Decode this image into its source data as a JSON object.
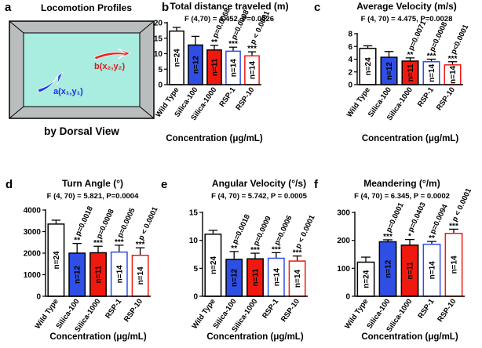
{
  "panel_a": {
    "letter": "a",
    "title": "Locomotion Profiles",
    "point_b": "b(x₂,y₂)",
    "point_a": "a(x₁,y₁)",
    "caption": "by Dorsal View"
  },
  "chart_data": [
    {
      "type": "bar",
      "panel": "b",
      "title": "Total distance traveled (m)",
      "subtitle": "F (4,70) = 4.452, P=0.0026",
      "categories": [
        "Wild Type",
        "Silica-100",
        "Silica-1000",
        "RSP-1",
        "RSP-10"
      ],
      "values": [
        17.3,
        12.8,
        11.2,
        10.8,
        9.3
      ],
      "errors": [
        1.2,
        2.8,
        1.5,
        1.3,
        1.3
      ],
      "colors": [
        "#ffffff",
        "#2f4fe4",
        "#f0190f",
        "#ffffff",
        "#ffffff"
      ],
      "edge_colors": [
        "#000000",
        "#000000",
        "#000000",
        "#2f4fe4",
        "#f0190f"
      ],
      "n_labels": [
        "n=24",
        "n=12",
        "n=11",
        "n=14",
        "n=14"
      ],
      "stars": [
        null,
        null,
        "**",
        "***",
        "***"
      ],
      "p_labels": [
        null,
        null,
        "p=0.0068",
        "p=0.0008",
        "p < 0.0001"
      ],
      "xlabel": "Concentration (μg/mL)",
      "ylim": [
        0,
        20
      ],
      "yticks": [
        0,
        5,
        10,
        15,
        20
      ]
    },
    {
      "type": "bar",
      "panel": "c",
      "title": "Average Velocity (m/s)",
      "subtitle": "F (4, 70) = 4.475, P=0.0028",
      "categories": [
        "Wild Type",
        "Silica-100",
        "Silica-1000",
        "RSP-1",
        "RSP-10"
      ],
      "values": [
        5.7,
        4.3,
        3.7,
        3.6,
        3.1
      ],
      "errors": [
        0.4,
        0.9,
        0.5,
        0.4,
        0.5
      ],
      "colors": [
        "#ffffff",
        "#2f4fe4",
        "#f0190f",
        "#ffffff",
        "#ffffff"
      ],
      "edge_colors": [
        "#000000",
        "#000000",
        "#000000",
        "#2f4fe4",
        "#f0190f"
      ],
      "n_labels": [
        "n=24",
        "n=12",
        "n=11",
        "n=14",
        "n=14"
      ],
      "stars": [
        null,
        null,
        "**",
        "***",
        "***"
      ],
      "p_labels": [
        null,
        null,
        "p=0.0071",
        "p=0.0008",
        "p<0.0001"
      ],
      "xlabel": "Concentration (μg/mL)",
      "ylim": [
        0,
        8
      ],
      "yticks": [
        0,
        2,
        4,
        6,
        8
      ]
    },
    {
      "type": "bar",
      "panel": "d",
      "title": "Turn Angle (°)",
      "subtitle": "F (4, 70) = 5.821, P=0.0004",
      "categories": [
        "Wild Type",
        "Silica-100",
        "Silica-1000",
        "RSP-1",
        "RSP-10"
      ],
      "values": [
        3350,
        2000,
        2020,
        2050,
        1900
      ],
      "errors": [
        180,
        450,
        300,
        320,
        350
      ],
      "colors": [
        "#ffffff",
        "#2f4fe4",
        "#f0190f",
        "#ffffff",
        "#ffffff"
      ],
      "edge_colors": [
        "#000000",
        "#000000",
        "#000000",
        "#2f4fe4",
        "#f0190f"
      ],
      "n_labels": [
        "n=24",
        "n=12",
        "n=11",
        "n=14",
        "n=14"
      ],
      "stars": [
        null,
        "**",
        "***",
        "***",
        "***"
      ],
      "p_labels": [
        null,
        "p=0.0018",
        "p=0.0008",
        "p=0.0005",
        "p < 0.0001"
      ],
      "xlabel": "Concentration (μg/mL)",
      "ylim": [
        0,
        4000
      ],
      "yticks": [
        0,
        1000,
        2000,
        3000,
        4000
      ]
    },
    {
      "type": "bar",
      "panel": "e",
      "title": "Angular Velocity (°/s)",
      "subtitle": "F (4, 70) = 5.742, P = 0.0005",
      "categories": [
        "Wild Type",
        "Silica-100",
        "Silica-1000",
        "RSP-1",
        "RSP-10"
      ],
      "values": [
        11.1,
        6.6,
        6.7,
        6.8,
        6.3
      ],
      "errors": [
        0.7,
        1.4,
        1.0,
        1.0,
        0.9
      ],
      "colors": [
        "#ffffff",
        "#2f4fe4",
        "#f0190f",
        "#ffffff",
        "#ffffff"
      ],
      "edge_colors": [
        "#000000",
        "#000000",
        "#000000",
        "#2f4fe4",
        "#f0190f"
      ],
      "n_labels": [
        "n=24",
        "n=12",
        "n=11",
        "n=14",
        "n=14"
      ],
      "stars": [
        null,
        "**",
        "***",
        "***",
        "***"
      ],
      "p_labels": [
        null,
        "p=0.0018",
        "p=0.0009",
        "p=0.0006",
        "p < 0.0001"
      ],
      "xlabel": "Concentration (μg/mL)",
      "ylim": [
        0,
        15
      ],
      "yticks": [
        0,
        5,
        10,
        15
      ]
    },
    {
      "type": "bar",
      "panel": "f",
      "title": "Meandering (°/m)",
      "subtitle": "F (4, 70) = 6.345, P = 0.0002",
      "categories": [
        "Wild Type",
        "Silica-100",
        "Silica-1000",
        "RSP-1",
        "RSP-10"
      ],
      "values": [
        122,
        195,
        183,
        186,
        225
      ],
      "errors": [
        18,
        7,
        20,
        10,
        15
      ],
      "colors": [
        "#ffffff",
        "#2f4fe4",
        "#f0190f",
        "#ffffff",
        "#ffffff"
      ],
      "edge_colors": [
        "#000000",
        "#000000",
        "#000000",
        "#2f4fe4",
        "#f0190f"
      ],
      "n_labels": [
        "n=24",
        "n=12",
        "n=11",
        "n=14",
        "n=14"
      ],
      "stars": [
        null,
        "***",
        "*",
        "**",
        "***"
      ],
      "p_labels": [
        null,
        "p=0.0001",
        "p=0.0403",
        "p=0.0094",
        "p < 0.0001"
      ],
      "xlabel": "Concentration (μg/mL)",
      "ylim": [
        0,
        300
      ],
      "yticks": [
        0,
        100,
        200,
        300
      ]
    }
  ]
}
